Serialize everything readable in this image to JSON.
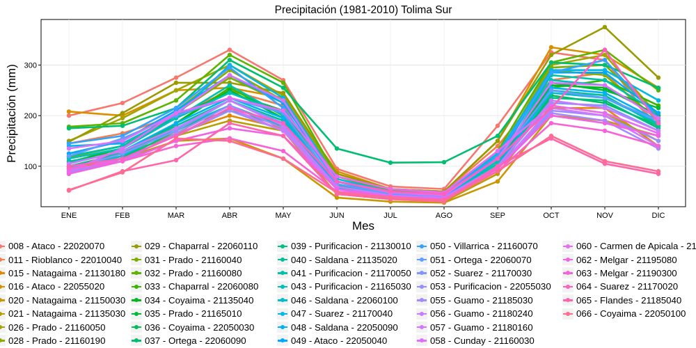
{
  "chart_data": {
    "type": "line",
    "title": "Precipitación (1981-2010)  Tolima Sur",
    "xlabel": "Mes",
    "ylabel": "Precipitación (mm)",
    "categories": [
      "ENE",
      "FEB",
      "MAR",
      "ABR",
      "MAY",
      "JUN",
      "JUL",
      "AGO",
      "SEP",
      "OCT",
      "NOV",
      "DIC"
    ],
    "ylim": [
      20,
      390
    ],
    "yticks": [
      100,
      200,
      300
    ],
    "grid": true,
    "legend_position": "bottom",
    "series": [
      {
        "name": "008 - Ataco - 22020070",
        "color": "#F8766D",
        "values": [
          200,
          225,
          275,
          330,
          270,
          95,
          60,
          55,
          180,
          325,
          310,
          175
        ]
      },
      {
        "name": "011 - Rioblanco - 22010040",
        "color": "#F07F4B",
        "values": [
          145,
          165,
          200,
          250,
          220,
          85,
          55,
          50,
          140,
          270,
          285,
          180
        ]
      },
      {
        "name": "015 - Natagaima - 21130180",
        "color": "#E58700",
        "values": [
          95,
          120,
          165,
          200,
          175,
          55,
          40,
          35,
          95,
          215,
          215,
          140
        ]
      },
      {
        "name": "016 - Ataco - 22055020",
        "color": "#D89000",
        "values": [
          208,
          200,
          250,
          255,
          235,
          90,
          55,
          50,
          150,
          335,
          320,
          255
        ]
      },
      {
        "name": "020 - Natagaima - 21150030",
        "color": "#C99800",
        "values": [
          95,
          115,
          150,
          155,
          115,
          38,
          30,
          28,
          70,
          200,
          190,
          160
        ]
      },
      {
        "name": "021 - Natagaima - 21135030",
        "color": "#B79F00",
        "values": [
          120,
          125,
          160,
          190,
          170,
          45,
          35,
          30,
          85,
          220,
          205,
          150
        ]
      },
      {
        "name": "026 - Prado - 21160050",
        "color": "#A3A500",
        "values": [
          150,
          195,
          250,
          300,
          240,
          80,
          50,
          45,
          120,
          300,
          320,
          200
        ]
      },
      {
        "name": "028 - Prado - 21160190",
        "color": "#8EAB00",
        "values": [
          125,
          150,
          210,
          290,
          230,
          70,
          45,
          40,
          115,
          290,
          280,
          190
        ]
      },
      {
        "name": "029 - Chaparral - 22060110",
        "color": "#9A9B00",
        "values": [
          148,
          205,
          265,
          265,
          245,
          85,
          55,
          50,
          150,
          320,
          375,
          275
        ]
      },
      {
        "name": "031 - Prado - 21160040",
        "color": "#7CAE00",
        "values": [
          118,
          140,
          205,
          275,
          225,
          70,
          45,
          40,
          110,
          295,
          300,
          200
        ]
      },
      {
        "name": "032 - Prado - 21160080",
        "color": "#5EB300",
        "values": [
          178,
          185,
          230,
          320,
          265,
          80,
          52,
          45,
          130,
          305,
          330,
          250
        ]
      },
      {
        "name": "033 - Chaparral - 22060080",
        "color": "#39B600",
        "values": [
          98,
          125,
          185,
          255,
          200,
          60,
          40,
          35,
          100,
          255,
          270,
          220
        ]
      },
      {
        "name": "034 - Coyaima - 21135040",
        "color": "#00B81F",
        "values": [
          85,
          115,
          185,
          250,
          195,
          65,
          40,
          35,
          100,
          260,
          255,
          200
        ]
      },
      {
        "name": "035 - Prado - 21165010",
        "color": "#00BA38",
        "values": [
          108,
          135,
          200,
          245,
          210,
          62,
          42,
          38,
          105,
          265,
          250,
          215
        ]
      },
      {
        "name": "036 - Coyaima - 22050030",
        "color": "#00BC59",
        "values": [
          100,
          125,
          175,
          210,
          180,
          55,
          40,
          35,
          95,
          240,
          225,
          180
        ]
      },
      {
        "name": "037 - Ortega - 22060090",
        "color": "#00BE70",
        "values": [
          175,
          180,
          215,
          310,
          255,
          135,
          107,
          108,
          160,
          305,
          300,
          255
        ]
      },
      {
        "name": "039 - Purificacion - 21130010",
        "color": "#00BF84",
        "values": [
          100,
          115,
          170,
          220,
          175,
          60,
          38,
          35,
          95,
          235,
          230,
          175
        ]
      },
      {
        "name": "040 - Saldana - 21135020",
        "color": "#00C097",
        "values": [
          110,
          125,
          180,
          230,
          190,
          60,
          40,
          35,
          100,
          250,
          240,
          180
        ]
      },
      {
        "name": "041 - Purificacion - 21170050",
        "color": "#00C1A9",
        "values": [
          120,
          140,
          195,
          260,
          200,
          65,
          42,
          38,
          105,
          280,
          270,
          205
        ]
      },
      {
        "name": "043 - Purificacion - 21165030",
        "color": "#00C0BB",
        "values": [
          115,
          135,
          195,
          245,
          205,
          60,
          42,
          38,
          110,
          270,
          260,
          195
        ]
      },
      {
        "name": "046 - Saldana - 22060100",
        "color": "#00BDD0",
        "values": [
          100,
          120,
          175,
          220,
          180,
          58,
          40,
          36,
          100,
          245,
          235,
          185
        ]
      },
      {
        "name": "047 - Suarez - 21170040",
        "color": "#00B8E5",
        "values": [
          140,
          145,
          200,
          300,
          235,
          75,
          50,
          45,
          125,
          290,
          290,
          230
        ]
      },
      {
        "name": "048 - Saldana - 22050090",
        "color": "#00B2F3",
        "values": [
          105,
          130,
          185,
          235,
          195,
          60,
          42,
          38,
          100,
          255,
          245,
          190
        ]
      },
      {
        "name": "049 - Ataco - 22050040",
        "color": "#00A9FF",
        "values": [
          125,
          150,
          210,
          280,
          225,
          70,
          45,
          40,
          115,
          285,
          285,
          205
        ]
      },
      {
        "name": "050 - Villarrica - 21160070",
        "color": "#35A2FF",
        "values": [
          145,
          160,
          215,
          295,
          215,
          70,
          50,
          45,
          120,
          285,
          310,
          195
        ]
      },
      {
        "name": "051 - Ortega - 22060070",
        "color": "#619CFF",
        "values": [
          120,
          155,
          200,
          235,
          205,
          65,
          45,
          42,
          115,
          250,
          235,
          190
        ]
      },
      {
        "name": "052 - Suarez - 21170030",
        "color": "#7F96FF",
        "values": [
          95,
          125,
          170,
          230,
          185,
          55,
          40,
          35,
          100,
          225,
          220,
          170
        ]
      },
      {
        "name": "053 - Purificacion - 22055030",
        "color": "#9590FF",
        "values": [
          88,
          115,
          160,
          210,
          170,
          55,
          40,
          35,
          95,
          210,
          200,
          150
        ]
      },
      {
        "name": "055 - Guamo - 21185030",
        "color": "#A58AFF",
        "values": [
          88,
          110,
          165,
          220,
          175,
          55,
          38,
          35,
          95,
          205,
          190,
          135
        ]
      },
      {
        "name": "056 - Guamo - 21180240",
        "color": "#C77CFF",
        "values": [
          105,
          130,
          175,
          230,
          180,
          60,
          42,
          38,
          100,
          230,
          215,
          170
        ]
      },
      {
        "name": "057 - Guamo - 21180160",
        "color": "#D376FF",
        "values": [
          92,
          115,
          160,
          215,
          170,
          55,
          40,
          35,
          95,
          215,
          200,
          140
        ]
      },
      {
        "name": "058 - Cunday - 21160030",
        "color": "#DE71F9",
        "values": [
          135,
          150,
          205,
          280,
          230,
          70,
          48,
          42,
          115,
          265,
          260,
          195
        ]
      },
      {
        "name": "060 - Carmen de Apicala - 21160060",
        "color": "#E76BF3",
        "values": [
          90,
          135,
          205,
          235,
          210,
          80,
          55,
          48,
          130,
          220,
          205,
          165
        ]
      },
      {
        "name": "062 - Melgar - 21195080",
        "color": "#F063E6",
        "values": [
          85,
          110,
          150,
          175,
          160,
          55,
          40,
          35,
          95,
          200,
          185,
          160
        ]
      },
      {
        "name": "063 - Melgar - 21190300",
        "color": "#F763D4",
        "values": [
          95,
          110,
          140,
          155,
          130,
          50,
          40,
          35,
          90,
          185,
          170,
          140
        ]
      },
      {
        "name": "064 - Suarez - 21170020",
        "color": "#FC61BF",
        "values": [
          100,
          115,
          160,
          215,
          185,
          70,
          50,
          45,
          115,
          215,
          330,
          185
        ]
      },
      {
        "name": "065 - Flandes - 21185040",
        "color": "#FF65AC",
        "values": [
          52,
          90,
          112,
          185,
          160,
          45,
          35,
          30,
          100,
          155,
          105,
          85
        ]
      },
      {
        "name": "066 - Coyaima - 22050100",
        "color": "#FF6C91",
        "values": [
          53,
          88,
          155,
          150,
          115,
          48,
          38,
          32,
          90,
          160,
          110,
          90
        ]
      }
    ]
  }
}
